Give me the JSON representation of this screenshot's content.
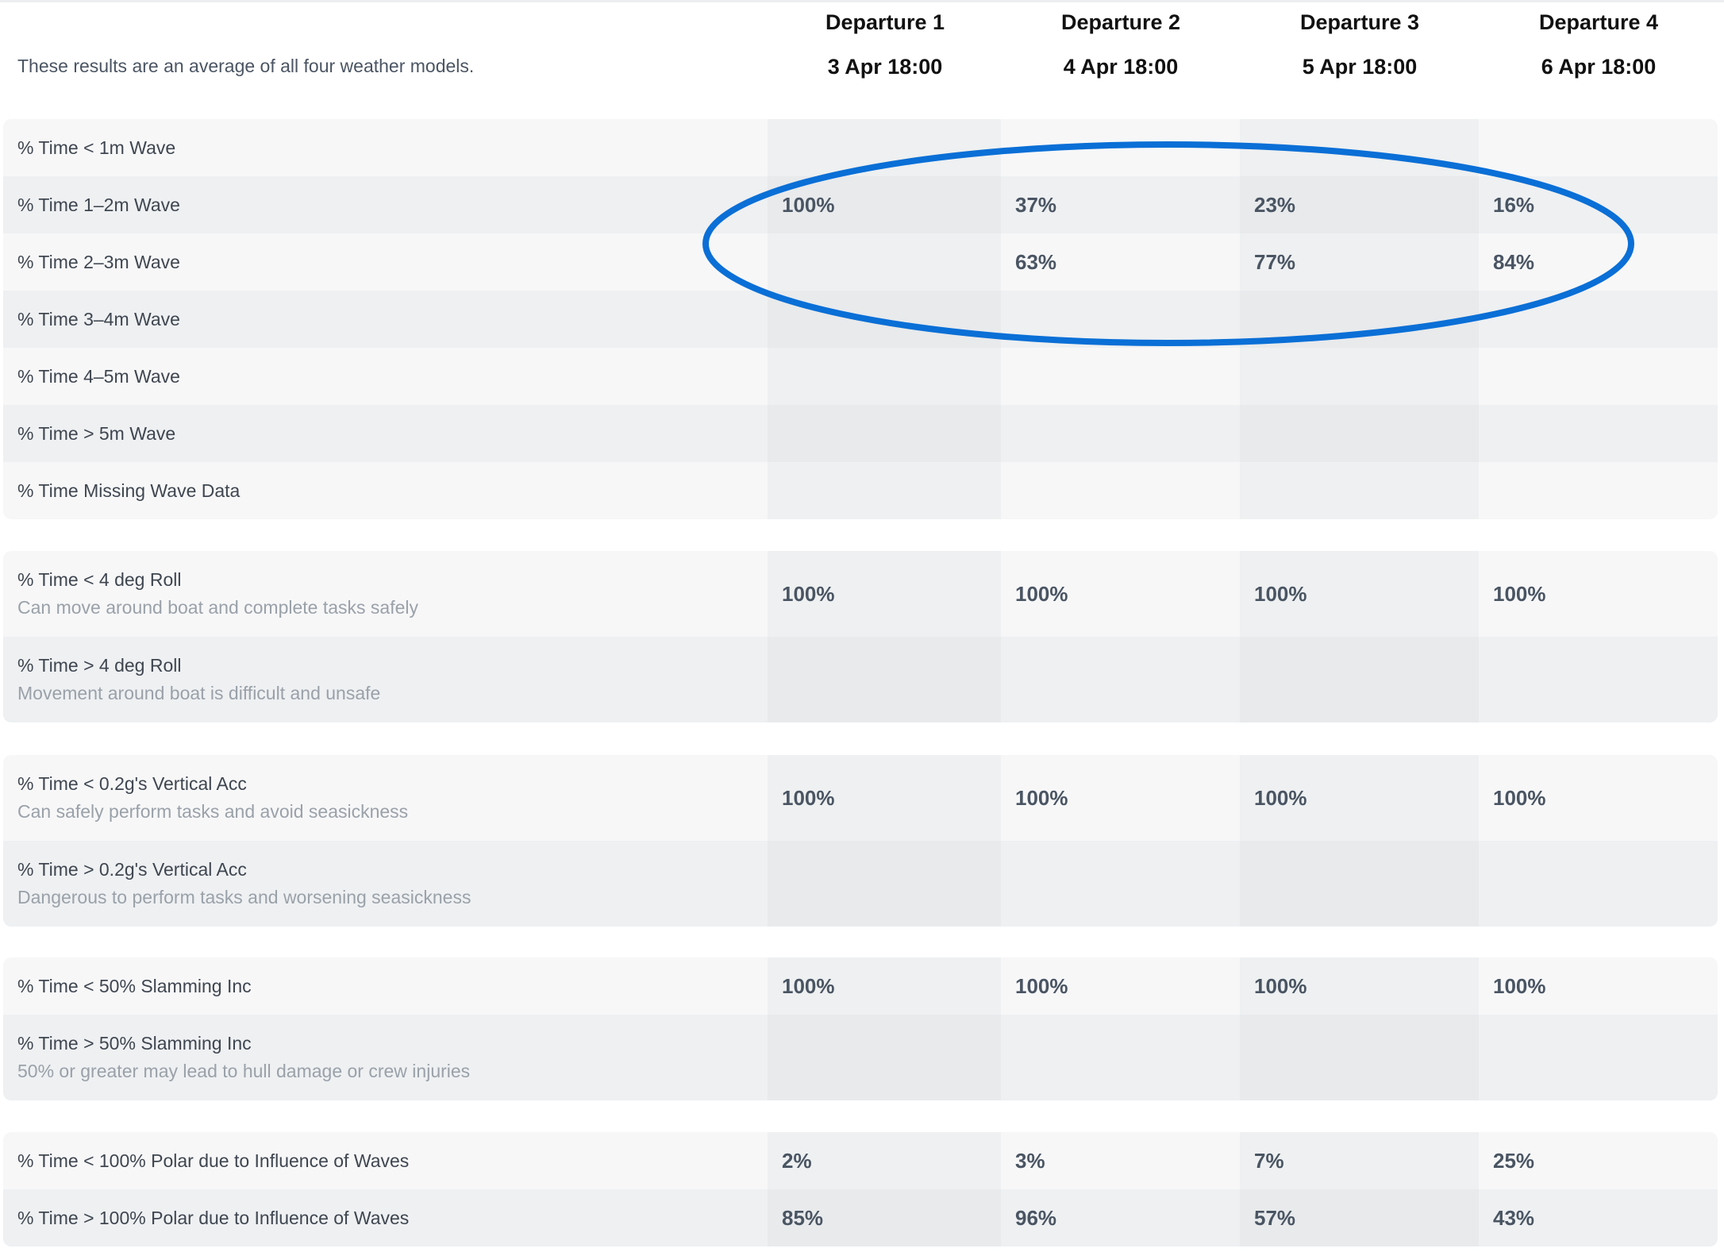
{
  "header": {
    "note": "These results are an average of all four weather models.",
    "departures": [
      {
        "title": "Departure 1",
        "date": "3 Apr 18:00"
      },
      {
        "title": "Departure 2",
        "date": "4 Apr 18:00"
      },
      {
        "title": "Departure 3",
        "date": "5 Apr 18:00"
      },
      {
        "title": "Departure 4",
        "date": "6 Apr 18:00"
      }
    ]
  },
  "colors": {
    "highlight_ellipse": "#0a6fd6",
    "label_text": "#3f4650",
    "sublabel_text": "#9aa1a9",
    "value_text": "#4a5563"
  },
  "sections": [
    {
      "rows": [
        {
          "label": "% Time < 1m Wave",
          "values": [
            "",
            "",
            "",
            ""
          ]
        },
        {
          "label": "% Time 1–2m Wave",
          "values": [
            "100%",
            "37%",
            "23%",
            "16%"
          ]
        },
        {
          "label": "% Time 2–3m Wave",
          "values": [
            "",
            "63%",
            "77%",
            "84%"
          ]
        },
        {
          "label": "% Time 3–4m Wave",
          "values": [
            "",
            "",
            "",
            ""
          ]
        },
        {
          "label": "% Time 4–5m Wave",
          "values": [
            "",
            "",
            "",
            ""
          ]
        },
        {
          "label": "% Time > 5m Wave",
          "values": [
            "",
            "",
            "",
            ""
          ]
        },
        {
          "label": "% Time Missing Wave Data",
          "values": [
            "",
            "",
            "",
            ""
          ]
        }
      ]
    },
    {
      "rows": [
        {
          "label": "% Time < 4 deg Roll",
          "sublabel": "Can move around boat and complete tasks safely",
          "values": [
            "100%",
            "100%",
            "100%",
            "100%"
          ]
        },
        {
          "label": "% Time > 4 deg Roll",
          "sublabel": "Movement around boat is difficult and unsafe",
          "values": [
            "",
            "",
            "",
            ""
          ]
        }
      ]
    },
    {
      "rows": [
        {
          "label": "% Time < 0.2g's Vertical Acc",
          "sublabel": "Can safely perform tasks and avoid seasickness",
          "values": [
            "100%",
            "100%",
            "100%",
            "100%"
          ]
        },
        {
          "label": "% Time > 0.2g's Vertical Acc",
          "sublabel": "Dangerous to perform tasks and worsening seasickness",
          "values": [
            "",
            "",
            "",
            ""
          ]
        }
      ]
    },
    {
      "rows": [
        {
          "label": "% Time < 50% Slamming Inc",
          "values": [
            "100%",
            "100%",
            "100%",
            "100%"
          ]
        },
        {
          "label": "% Time > 50% Slamming Inc",
          "sublabel": "50% or greater may lead to hull damage or crew injuries",
          "values": [
            "",
            "",
            "",
            ""
          ]
        }
      ]
    },
    {
      "rows": [
        {
          "label": "% Time < 100% Polar due to Influence of Waves",
          "values": [
            "2%",
            "3%",
            "7%",
            "25%"
          ]
        },
        {
          "label": "% Time > 100% Polar due to Influence of Waves",
          "values": [
            "85%",
            "96%",
            "57%",
            "43%"
          ]
        }
      ]
    }
  ]
}
